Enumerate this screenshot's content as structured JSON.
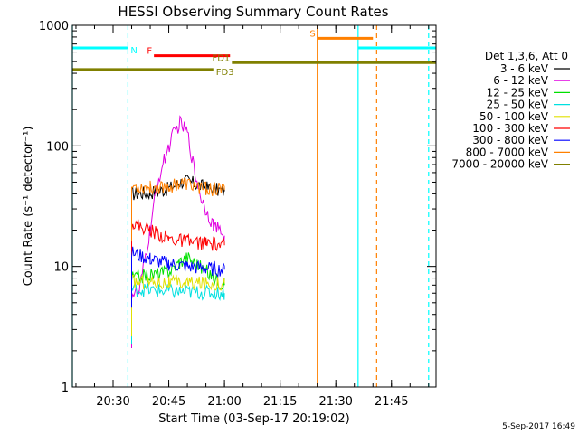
{
  "chart_data": {
    "type": "line",
    "title": "HESSI Observing Summary Count Rates",
    "xlabel": "Start Time (03-Sep-17 20:19:02)",
    "ylabel": "Count Rate (s⁻¹ detector⁻¹)",
    "yscale": "log",
    "ylim": [
      1,
      1000
    ],
    "xlim": [
      "20:19:02",
      "21:57:00"
    ],
    "x_ticks": [
      "20:30",
      "20:45",
      "21:00",
      "21:15",
      "21:30",
      "21:45"
    ],
    "y_ticks": [
      "1",
      "10",
      "100",
      "1000"
    ],
    "grid": false,
    "legend_position": "right",
    "legend_title": "Det 1,3,6, Att 0",
    "footer_date": "5-Sep-2017 16:49",
    "series": [
      {
        "name": "3 - 6 keV",
        "color": "#000000",
        "x": [
          "20:35",
          "20:40",
          "20:45",
          "20:48",
          "20:50",
          "20:55",
          "21:00"
        ],
        "y": [
          40,
          41,
          44,
          50,
          51,
          45,
          42
        ]
      },
      {
        "name": "6 - 12 keV",
        "color": "#e000e0",
        "x": [
          "20:35",
          "20:37",
          "20:40",
          "20:42",
          "20:44",
          "20:46",
          "20:48",
          "20:50",
          "20:52",
          "20:54",
          "20:57",
          "21:00"
        ],
        "y": [
          6,
          6,
          20,
          50,
          80,
          120,
          155,
          130,
          60,
          35,
          22,
          18
        ]
      },
      {
        "name": "12 - 25 keV",
        "color": "#00e000",
        "x": [
          "20:35",
          "20:45",
          "20:48",
          "20:50",
          "21:00"
        ],
        "y": [
          8,
          9,
          11,
          12,
          7
        ]
      },
      {
        "name": "25 - 50 keV",
        "color": "#00e0e0",
        "x": [
          "20:35",
          "20:45",
          "21:00"
        ],
        "y": [
          6.5,
          6.2,
          6
        ]
      },
      {
        "name": "50 - 100 keV",
        "color": "#e0e000",
        "x": [
          "20:35",
          "20:45",
          "21:00"
        ],
        "y": [
          7.5,
          7.3,
          7.2
        ]
      },
      {
        "name": "100 - 300 keV",
        "color": "#ff0000",
        "x": [
          "20:35",
          "20:40",
          "20:45",
          "20:50",
          "20:55",
          "21:00"
        ],
        "y": [
          23,
          20,
          17,
          16,
          15.5,
          15
        ]
      },
      {
        "name": "300 - 800 keV",
        "color": "#0000ff",
        "x": [
          "20:35",
          "20:40",
          "20:45",
          "20:50",
          "20:55",
          "21:00"
        ],
        "y": [
          13,
          11.5,
          10.5,
          10,
          9.6,
          9.4
        ]
      },
      {
        "name": "800 - 7000 keV",
        "color": "#ff8000",
        "x": [
          "20:35",
          "20:40",
          "20:45",
          "20:48",
          "20:50",
          "20:55",
          "21:00"
        ],
        "y": [
          46,
          45,
          46,
          49,
          48,
          44,
          43
        ]
      },
      {
        "name": "7000 - 20000 keV",
        "color": "#808000",
        "x": [],
        "y": []
      }
    ],
    "flag_bars": [
      {
        "label": "N",
        "color": "#00ffff",
        "level": 650,
        "x_start": "20:19:02",
        "x_end": "20:34:00",
        "label_side": "end"
      },
      {
        "label": "F",
        "color": "#ff0000",
        "level": 560,
        "x_start": "20:41:00",
        "x_end": "21:01:30",
        "label_side": "start"
      },
      {
        "label": "FD1",
        "color": "#808000",
        "level": 490,
        "x_start": "21:02:00",
        "x_end": "21:57:00",
        "label_side": "start"
      },
      {
        "label": "FD3",
        "color": "#808000",
        "level": 430,
        "x_start": "20:19:02",
        "x_end": "20:57:00",
        "label_side": "end"
      },
      {
        "label": "S",
        "color": "#ff8000",
        "level": 780,
        "x_start": "21:25:00",
        "x_end": "21:40:00",
        "label_side": "start"
      },
      {
        "label": "",
        "color": "#00ffff",
        "level": 650,
        "x_start": "21:36:00",
        "x_end": "21:57:00",
        "label_side": "none"
      }
    ],
    "markers": [
      {
        "x": "20:19:02",
        "color": "#00ffff",
        "style": "solid"
      },
      {
        "x": "20:34:00",
        "color": "#00ffff",
        "style": "dashed"
      },
      {
        "x": "21:25:00",
        "color": "#ff8000",
        "style": "solid"
      },
      {
        "x": "21:36:00",
        "color": "#00ffff",
        "style": "solid"
      },
      {
        "x": "21:41:00",
        "color": "#ff8000",
        "style": "dashed"
      },
      {
        "x": "21:55:00",
        "color": "#00ffff",
        "style": "dashed"
      }
    ]
  }
}
